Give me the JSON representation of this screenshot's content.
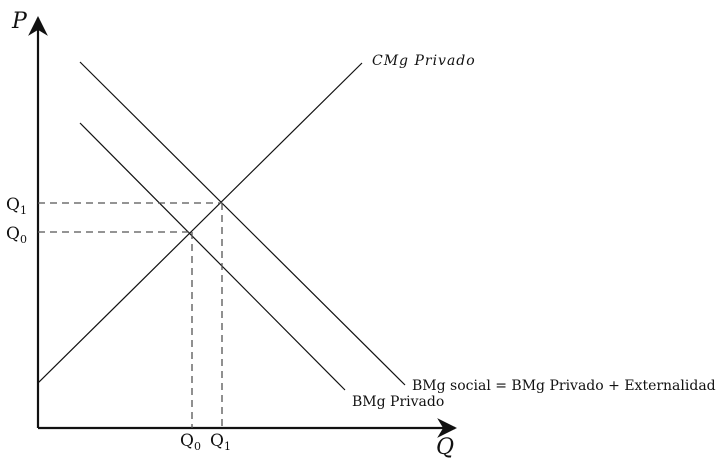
{
  "axes": {
    "y_label": "P",
    "x_label": "Q"
  },
  "y_ticks": {
    "upper": {
      "base": "Q",
      "sub": "1"
    },
    "lower": {
      "base": "Q",
      "sub": "0"
    }
  },
  "x_ticks": {
    "first": {
      "base": "Q",
      "sub": "0"
    },
    "second": {
      "base": "Q",
      "sub": "1"
    }
  },
  "curves": {
    "supply": "CMg Privado",
    "demand_private": "BMg Privado",
    "demand_social": "BMg social = BMg Privado + Externalidad"
  },
  "colors": {
    "ink": "#111111",
    "guide": "#555555"
  }
}
